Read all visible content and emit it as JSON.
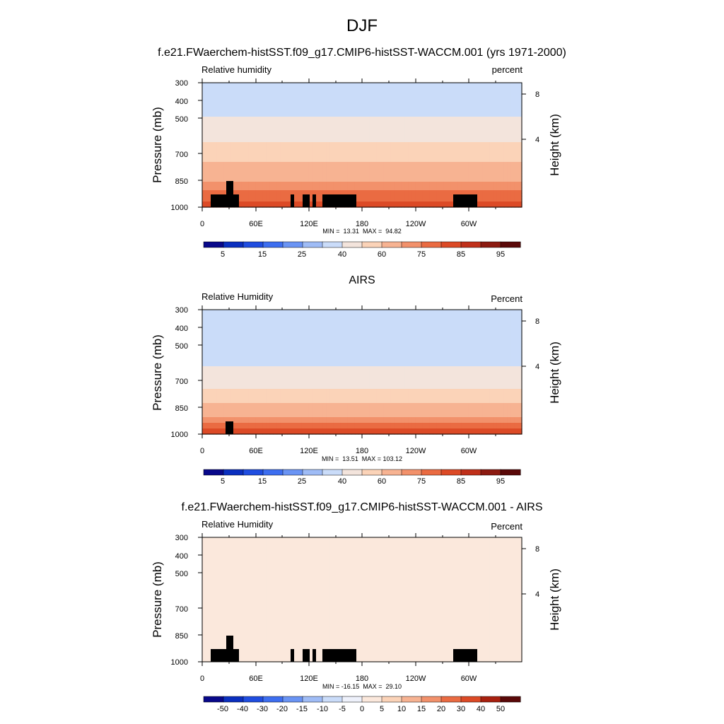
{
  "figure": {
    "title": "DJF"
  },
  "colors": {
    "absolute_scale": [
      "#08088a",
      "#0a2fbf",
      "#1f4de0",
      "#3d6ef0",
      "#6a94f4",
      "#9fbcf6",
      "#cadcf9",
      "#f3e4dc",
      "#fbd3b8",
      "#f7b392",
      "#f2916b",
      "#ea6b42",
      "#dc4a26",
      "#c0301a",
      "#8c1a10",
      "#5a0808"
    ],
    "difference_scale": [
      "#08088a",
      "#0a2fbf",
      "#1f4de0",
      "#3d6ef0",
      "#6a94f4",
      "#9fbcf6",
      "#cadcf9",
      "#eef1fb",
      "#fbe8dc",
      "#fbd3b8",
      "#f7b392",
      "#f2916b",
      "#ea6b42",
      "#dc4a26",
      "#a8200f",
      "#5a0808"
    ],
    "topography": "#000000"
  },
  "chart_data": [
    {
      "type": "heatmap",
      "title": "f.e21.FWaerchem-histSST.f09_g17.CMIP6-histSST-WACCM.001 (yrs 1971-2000)",
      "left_label": "Relative humidity",
      "right_label": "percent",
      "ylabel": "Pressure (mb)",
      "ylabel_right": "Height (km)",
      "x_ticks": [
        "0",
        "60E",
        "120E",
        "180",
        "120W",
        "60W"
      ],
      "y_ticks": [
        "300",
        "400",
        "500",
        "700",
        "850",
        "1000"
      ],
      "right_ticks": [
        "8",
        "4"
      ],
      "stats": "MIN =  13.31  MAX =  94.82",
      "colorbar_labels": [
        "5",
        "15",
        "25",
        "40",
        "60",
        "75",
        "85",
        "95"
      ],
      "field": "model"
    },
    {
      "type": "heatmap",
      "title": "AIRS",
      "left_label": "Relative Humidity",
      "right_label": "Percent",
      "ylabel": "Pressure (mb)",
      "ylabel_right": "Height (km)",
      "x_ticks": [
        "0",
        "60E",
        "120E",
        "180",
        "120W",
        "60W"
      ],
      "y_ticks": [
        "300",
        "400",
        "500",
        "700",
        "850",
        "1000"
      ],
      "right_ticks": [
        "8",
        "4"
      ],
      "stats": "MIN =  13.51  MAX = 103.12",
      "colorbar_labels": [
        "5",
        "15",
        "25",
        "40",
        "60",
        "75",
        "85",
        "95"
      ],
      "field": "obs"
    },
    {
      "type": "heatmap",
      "title": "f.e21.FWaerchem-histSST.f09_g17.CMIP6-histSST-WACCM.001 - AIRS",
      "left_label": "Relative Humidity",
      "right_label": "Percent",
      "ylabel": "Pressure (mb)",
      "ylabel_right": "Height (km)",
      "x_ticks": [
        "0",
        "60E",
        "120E",
        "180",
        "120W",
        "60W"
      ],
      "y_ticks": [
        "300",
        "400",
        "500",
        "700",
        "850",
        "1000"
      ],
      "right_ticks": [
        "8",
        "4"
      ],
      "stats": "MIN = -16.15  MAX =  29.10",
      "colorbar_labels": [
        "-50",
        "-40",
        "-30",
        "-20",
        "-15",
        "-10",
        "-5",
        "0",
        "5",
        "10",
        "15",
        "20",
        "30",
        "40",
        "50"
      ],
      "field": "diff"
    }
  ]
}
